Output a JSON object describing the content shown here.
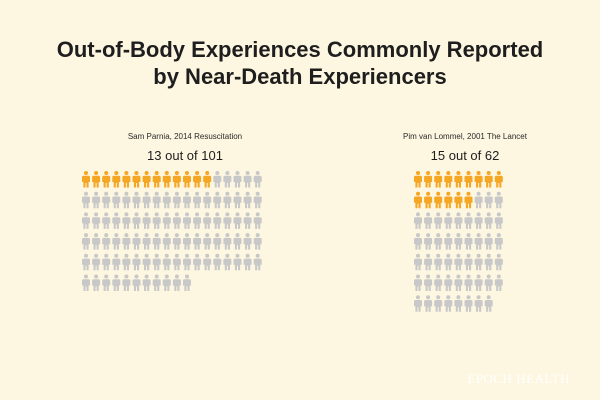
{
  "title": {
    "line1": "Out-of-Body Experiences Commonly Reported",
    "line2": "by Near-Death Experiencers"
  },
  "colors": {
    "background": "#fdf6e0",
    "highlight": "#f5a623",
    "base": "#c8c8c8",
    "text": "#1e1e1e"
  },
  "icon": "person-icon",
  "chart_data": [
    {
      "type": "pictogram",
      "study": "Sam Parnia, 2014 Resuscitation",
      "label": "13 out of 101",
      "highlighted": 13,
      "total": 101,
      "columns": 18
    },
    {
      "type": "pictogram",
      "study": "Pim van Lommel, 2001 The Lancet",
      "label": "15 out of 62",
      "highlighted": 15,
      "total": 62,
      "columns": 9
    }
  ],
  "brand": "EPOCH HEALTH"
}
